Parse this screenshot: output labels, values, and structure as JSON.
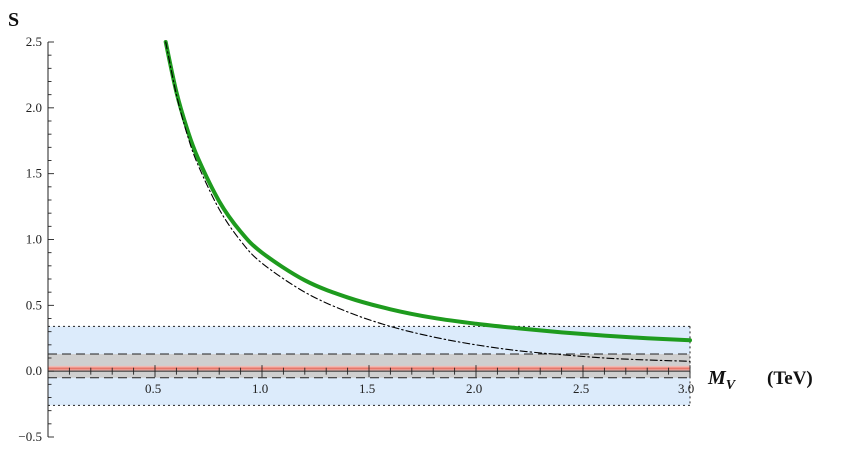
{
  "chart_data": {
    "type": "line",
    "title": "",
    "xlabel": "M_V (TeV)",
    "xlabel_main": "M",
    "xlabel_sub": "V",
    "xlabel_unit": "(TeV)",
    "ylabel": "S",
    "xlim": [
      0,
      3.0
    ],
    "ylim": [
      -0.5,
      2.5
    ],
    "x_ticks": [
      {
        "value": 0.5,
        "label": "0.5"
      },
      {
        "value": 1.0,
        "label": "1.0"
      },
      {
        "value": 1.5,
        "label": "1.5"
      },
      {
        "value": 2.0,
        "label": "2.0"
      },
      {
        "value": 2.5,
        "label": "2.5"
      },
      {
        "value": 3.0,
        "label": "3.0"
      }
    ],
    "y_ticks": [
      {
        "value": -0.5,
        "label": "−0.5"
      },
      {
        "value": 0.0,
        "label": "0.0"
      },
      {
        "value": 0.5,
        "label": "0.5"
      },
      {
        "value": 1.0,
        "label": "1.0"
      },
      {
        "value": 1.5,
        "label": "1.5"
      },
      {
        "value": 2.0,
        "label": "2.0"
      },
      {
        "value": 2.5,
        "label": "2.5"
      }
    ],
    "grid": false,
    "legend": "none",
    "bands": [
      {
        "y_low": -0.26,
        "y_high": 0.34,
        "fill": "#dcebfb",
        "edge": "dotted"
      },
      {
        "y_low": -0.05,
        "y_high": 0.13,
        "fill": "#cfcfcf",
        "edge": "dashed"
      },
      {
        "y_low": 0.0,
        "y_high": 0.04,
        "fill": "#f1b9b2",
        "edge": "none"
      }
    ],
    "central_line": {
      "y": 0.02,
      "color": "#e8776a"
    },
    "series": [
      {
        "style": "solid-thick",
        "color": "#1e9b1e",
        "x": [
          0.55,
          0.6,
          0.65,
          0.7,
          0.8,
          0.9,
          1.0,
          1.2,
          1.4,
          1.6,
          1.8,
          2.0,
          2.2,
          2.4,
          2.6,
          2.8,
          3.0
        ],
        "y": [
          2.5,
          2.12,
          1.84,
          1.62,
          1.29,
          1.06,
          0.9,
          0.69,
          0.56,
          0.47,
          0.405,
          0.36,
          0.325,
          0.295,
          0.27,
          0.25,
          0.235
        ]
      },
      {
        "style": "dash-dot",
        "color": "#000000",
        "x": [
          0.55,
          0.6,
          0.65,
          0.7,
          0.8,
          0.9,
          1.0,
          1.2,
          1.4,
          1.6,
          1.8,
          2.0,
          2.2,
          2.4,
          2.6,
          2.8,
          3.0
        ],
        "y": [
          2.5,
          2.1,
          1.8,
          1.57,
          1.23,
          0.99,
          0.82,
          0.6,
          0.45,
          0.34,
          0.26,
          0.2,
          0.155,
          0.125,
          0.1,
          0.085,
          0.075
        ]
      }
    ]
  }
}
